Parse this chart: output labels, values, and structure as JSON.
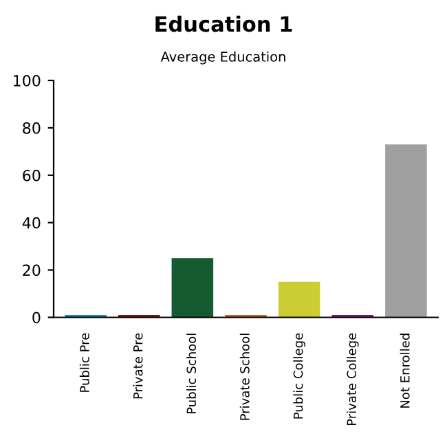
{
  "chart_data": {
    "type": "bar",
    "title": "Education 1",
    "subtitle": "Average Education",
    "categories": [
      "Public Pre",
      "Private Pre",
      "Public School",
      "Private School",
      "Public College",
      "Private College",
      "Not Enrolled"
    ],
    "values": [
      1,
      1,
      25,
      1,
      15,
      1,
      73
    ],
    "colors": [
      "#1a8aa6",
      "#7a1a1a",
      "#165a32",
      "#c2642a",
      "#cccc33",
      "#7a1a6a",
      "#a0a0a0"
    ],
    "ylim": [
      0,
      100
    ],
    "yticks": [
      0,
      20,
      40,
      60,
      80,
      100
    ],
    "grid": false
  }
}
